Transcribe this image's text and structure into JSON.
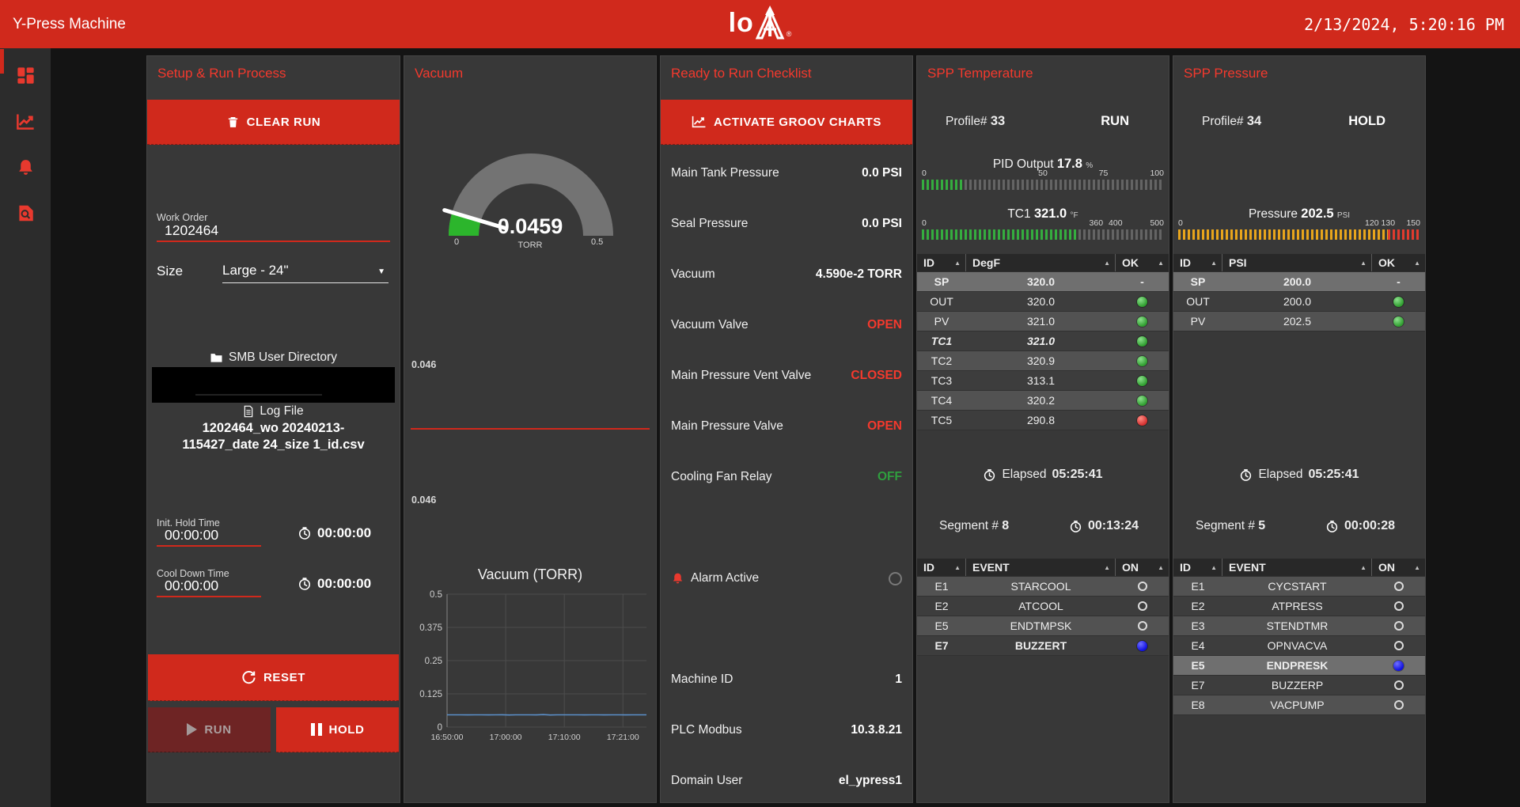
{
  "colors": {
    "primary_red": "#d0291c",
    "title_red": "#f4392d",
    "status_red": "#f4392d",
    "status_green": "#2f9e3e",
    "bar_green": "#35ad3f",
    "bar_amber": "#e8a51c",
    "bar_red": "#e23b2e",
    "chart_line": "#5b8fc9",
    "gauge_green": "#2cb52c",
    "gauge_gray": "#737373"
  },
  "header": {
    "app_title": "Y-Press Machine",
    "logo_text": "lo",
    "logo_registered": "®",
    "datetime": "2/13/2024, 5:20:16 PM"
  },
  "sidebar": {
    "items": [
      {
        "name": "dashboard"
      },
      {
        "name": "trends"
      },
      {
        "name": "alarms"
      },
      {
        "name": "event-logs"
      }
    ]
  },
  "setup_panel": {
    "title": "Setup & Run Process",
    "clear_run_label": "CLEAR RUN",
    "work_order": {
      "label": "Work Order",
      "value": "1202464"
    },
    "size": {
      "label": "Size",
      "value": "Large - 24\""
    },
    "smb_label": "SMB User Directory",
    "log_file_label": "Log File",
    "log_file_name": "1202464_wo 20240213-115427_date 24_size 1_id.csv",
    "init_hold": {
      "label": "Init. Hold Time",
      "value": "00:00:00",
      "timer": "00:00:00"
    },
    "cool_down": {
      "label": "Cool Down Time",
      "value": "00:00:00",
      "timer": "00:00:00"
    },
    "reset_label": "RESET",
    "run_label": "RUN",
    "hold_label": "HOLD"
  },
  "vacuum_panel": {
    "title": "Vacuum",
    "gauge": {
      "value": "0.0459",
      "unit": "TORR",
      "min_label": "0",
      "max_label": "0.5",
      "value_num": 0.0459,
      "max_num": 0.5
    },
    "upper_readout": "0.046",
    "lower_readout": "0.046",
    "chart_data": {
      "type": "line",
      "title": "Vacuum (TORR)",
      "ylim": [
        0,
        0.5
      ],
      "y_ticks": [
        {
          "t": "0",
          "v": 0
        },
        {
          "t": "0.125",
          "v": 0.125
        },
        {
          "t": "0.25",
          "v": 0.25
        },
        {
          "t": "0.375",
          "v": 0.375
        },
        {
          "t": "0.5",
          "v": 0.5
        }
      ],
      "x_ticks": [
        {
          "t": "16:50:00",
          "p": 0
        },
        {
          "t": "17:00:00",
          "p": 0.294
        },
        {
          "t": "17:10:00",
          "p": 0.588
        },
        {
          "t": "17:21:00",
          "p": 0.882
        }
      ],
      "grid": true,
      "legend": "none",
      "series": [
        {
          "name": "Vacuum",
          "color": "#5b8fc9",
          "values": [
            0.046,
            0.046,
            0.0462,
            0.0457,
            0.046,
            0.0461,
            0.0459,
            0.046,
            0.0463,
            0.0456,
            0.046,
            0.046,
            0.0462,
            0.0458,
            0.047,
            0.0455,
            0.0462,
            0.046,
            0.046,
            0.0461,
            0.0458,
            0.046,
            0.0462,
            0.0459,
            0.046,
            0.0461,
            0.0457,
            0.046,
            0.046,
            0.046
          ]
        }
      ]
    }
  },
  "checklist_panel": {
    "title": "Ready to Run Checklist",
    "activate_label": "ACTIVATE GROOV CHARTS",
    "items": [
      {
        "label": "Main Tank Pressure",
        "value": "0.0 PSI",
        "color": "white"
      },
      {
        "label": "Seal Pressure",
        "value": "0.0 PSI",
        "color": "white"
      },
      {
        "label": "Vacuum",
        "value": "4.590e-2 TORR",
        "color": "white"
      },
      {
        "label": "Vacuum Valve",
        "value": "OPEN",
        "color": "red"
      },
      {
        "label": "Main Pressure Vent Valve",
        "value": "CLOSED",
        "color": "red"
      },
      {
        "label": "Main Pressure Valve",
        "value": "OPEN",
        "color": "red"
      },
      {
        "label": "Cooling Fan Relay",
        "value": "OFF",
        "color": "green"
      }
    ],
    "alarm": {
      "label": "Alarm Active",
      "led": "off"
    },
    "info": [
      {
        "label": "Machine ID",
        "value": "1"
      },
      {
        "label": "PLC Modbus",
        "value": "10.3.8.21"
      },
      {
        "label": "Domain User",
        "value": "el_ypress1"
      }
    ]
  },
  "temperature_panel": {
    "title": "SPP Temperature",
    "profile_label": "Profile#",
    "profile_value": "33",
    "state": "RUN",
    "pid_bar": {
      "prefix": "PID Output",
      "value": "17.8",
      "unit": "%",
      "scale": [
        {
          "t": "0",
          "p": 0
        },
        {
          "t": "50",
          "p": 50
        },
        {
          "t": "75",
          "p": 75
        },
        {
          "t": "100",
          "p": 100
        }
      ],
      "segments": [
        {
          "pct": 17.8,
          "color": "bar_green"
        }
      ]
    },
    "tc1_bar": {
      "prefix": "TC1",
      "value": "321.0",
      "unit": "°F",
      "scale": [
        {
          "t": "0",
          "p": 0
        },
        {
          "t": "360",
          "p": 72
        },
        {
          "t": "400",
          "p": 80
        },
        {
          "t": "500",
          "p": 100
        }
      ],
      "segments": [
        {
          "pct": 64.2,
          "color": "bar_green"
        }
      ]
    },
    "table": {
      "headers": [
        "ID",
        "DegF",
        "OK"
      ],
      "rows": [
        {
          "id": "SP",
          "val": "320.0",
          "ok": "-",
          "style": "hl"
        },
        {
          "id": "OUT",
          "val": "320.0",
          "ok": "green"
        },
        {
          "id": "PV",
          "val": "321.0",
          "ok": "green"
        },
        {
          "id": "TC1",
          "val": "321.0",
          "ok": "green",
          "style": "bolditalic"
        },
        {
          "id": "TC2",
          "val": "320.9",
          "ok": "green"
        },
        {
          "id": "TC3",
          "val": "313.1",
          "ok": "green"
        },
        {
          "id": "TC4",
          "val": "320.2",
          "ok": "green"
        },
        {
          "id": "TC5",
          "val": "290.8",
          "ok": "red"
        }
      ]
    },
    "elapsed_label": "Elapsed",
    "elapsed_value": "05:25:41",
    "segment_label": "Segment #",
    "segment_value": "8",
    "segment_time": "00:13:24",
    "events": {
      "headers": [
        "ID",
        "EVENT",
        "ON"
      ],
      "rows": [
        {
          "id": "E1",
          "val": "STARCOOL",
          "on": false
        },
        {
          "id": "E2",
          "val": "ATCOOL",
          "on": false
        },
        {
          "id": "E5",
          "val": "ENDTMPSK",
          "on": false
        },
        {
          "id": "E7",
          "val": "BUZZERT",
          "on": true,
          "style": "bold"
        }
      ]
    }
  },
  "pressure_panel": {
    "title": "SPP Pressure",
    "profile_label": "Profile#",
    "profile_value": "34",
    "state": "HOLD",
    "pressure_bar": {
      "prefix": "Pressure",
      "value": "202.5",
      "unit": "PSI",
      "scale": [
        {
          "t": "0",
          "p": 0
        },
        {
          "t": "120",
          "p": 80
        },
        {
          "t": "130",
          "p": 86.7
        },
        {
          "t": "150",
          "p": 100
        }
      ],
      "segments": [
        {
          "pct": 86.7,
          "color": "bar_amber"
        },
        {
          "pct": 13.3,
          "color": "bar_red"
        }
      ]
    },
    "table": {
      "headers": [
        "ID",
        "PSI",
        "OK"
      ],
      "rows": [
        {
          "id": "SP",
          "val": "200.0",
          "ok": "-",
          "style": "hl"
        },
        {
          "id": "OUT",
          "val": "200.0",
          "ok": "green"
        },
        {
          "id": "PV",
          "val": "202.5",
          "ok": "green"
        }
      ]
    },
    "elapsed_label": "Elapsed",
    "elapsed_value": "05:25:41",
    "segment_label": "Segment #",
    "segment_value": "5",
    "segment_time": "00:00:28",
    "events": {
      "headers": [
        "ID",
        "EVENT",
        "ON"
      ],
      "rows": [
        {
          "id": "E1",
          "val": "CYCSTART",
          "on": false
        },
        {
          "id": "E2",
          "val": "ATPRESS",
          "on": false
        },
        {
          "id": "E3",
          "val": "STENDTMR",
          "on": false
        },
        {
          "id": "E4",
          "val": "OPNVACVA",
          "on": false
        },
        {
          "id": "E5",
          "val": "ENDPRESK",
          "on": true,
          "style": "hl"
        },
        {
          "id": "E7",
          "val": "BUZZERP",
          "on": false
        },
        {
          "id": "E8",
          "val": "VACPUMP",
          "on": false
        }
      ]
    }
  }
}
